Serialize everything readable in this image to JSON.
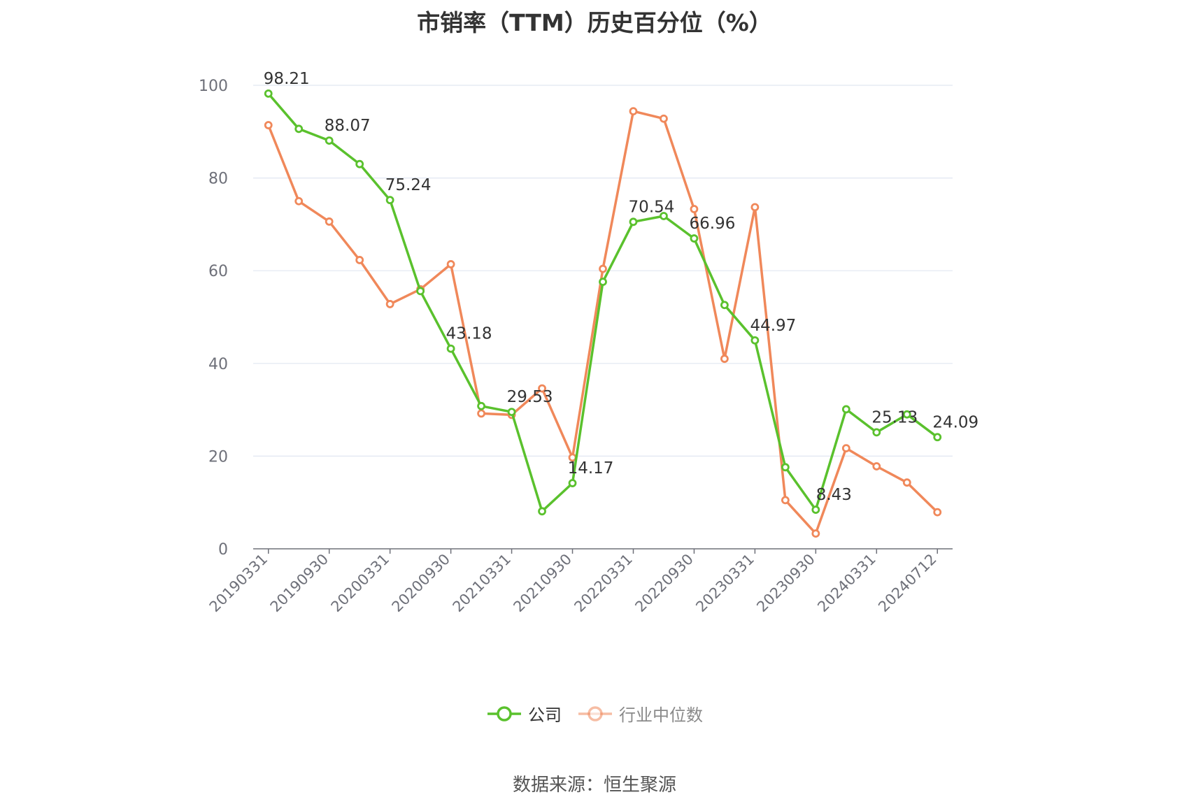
{
  "chart_data": {
    "type": "line",
    "title": "市销率（TTM）历史百分位（%）",
    "xlabel": "",
    "ylabel": "",
    "ylim": [
      0,
      100
    ],
    "yticks": [
      0,
      20,
      40,
      60,
      80,
      100
    ],
    "grid": true,
    "legend_position": "bottom",
    "x": [
      "20190331",
      "20190630",
      "20190930",
      "20191231",
      "20200331",
      "20200630",
      "20200930",
      "20201231",
      "20210331",
      "20210630",
      "20210930",
      "20211231",
      "20220331",
      "20220630",
      "20220930",
      "20221231",
      "20230331",
      "20230630",
      "20230930",
      "20231231",
      "20240331",
      "20240630",
      "20240712"
    ],
    "xtick_labels": [
      "20190331",
      "20190930",
      "20200331",
      "20200930",
      "20210331",
      "20210930",
      "20220331",
      "20220930",
      "20230331",
      "20230930",
      "20240331",
      "20240712"
    ],
    "series": [
      {
        "name": "公司",
        "color": "#5ac12d",
        "values": [
          98.21,
          90.6,
          88.07,
          83.0,
          75.24,
          55.6,
          43.18,
          30.8,
          29.53,
          8.1,
          14.17,
          57.6,
          70.54,
          71.8,
          66.96,
          52.6,
          44.97,
          17.6,
          8.43,
          30.1,
          25.13,
          29.0,
          24.09
        ],
        "labels": {
          "0": "98.21",
          "2": "88.07",
          "4": "75.24",
          "6": "43.18",
          "8": "29.53",
          "10": "14.17",
          "12": "70.54",
          "14": "66.96",
          "16": "44.97",
          "18": "8.43",
          "20": "25.13",
          "22": "24.09"
        }
      },
      {
        "name": "行业中位数",
        "color": "#f0885a",
        "values": [
          91.4,
          75.0,
          70.6,
          62.3,
          52.8,
          56.0,
          61.4,
          29.2,
          28.9,
          34.6,
          19.7,
          60.4,
          94.4,
          92.8,
          73.3,
          41.0,
          73.7,
          10.5,
          3.3,
          21.7,
          17.8,
          14.3,
          7.9
        ]
      }
    ]
  },
  "source_text": "数据来源：恒生聚源"
}
